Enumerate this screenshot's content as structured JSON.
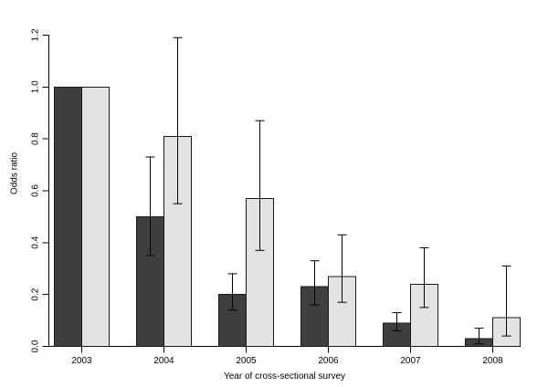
{
  "figure": {
    "background": "#ffffff",
    "axis_color": "#000000",
    "text_color": "#000000"
  },
  "chart_data": {
    "type": "bar",
    "xlabel": "Year of cross-sectional survey",
    "ylabel": "Odds ratio",
    "categories": [
      "2003",
      "2004",
      "2005",
      "2006",
      "2007",
      "2008"
    ],
    "ylim": [
      0.0,
      1.2
    ],
    "y_ticks": [
      0.0,
      0.2,
      0.4,
      0.6,
      0.8,
      1.0,
      1.2
    ],
    "y_tick_labels": [
      "0.0",
      "0.2",
      "0.4",
      "0.6",
      "0.8",
      "1.0",
      "1.2"
    ],
    "grid": false,
    "legend_position": "none",
    "series": [
      {
        "name": "dark-gray-bars",
        "color": "#3f3f3f",
        "border": "#1a1a1a",
        "values": [
          1.0,
          0.5,
          0.2,
          0.23,
          0.09,
          0.03
        ],
        "ci_low": [
          null,
          0.35,
          0.14,
          0.16,
          0.06,
          0.01
        ],
        "ci_high": [
          null,
          0.73,
          0.28,
          0.33,
          0.13,
          0.07
        ]
      },
      {
        "name": "light-gray-bars",
        "color": "#e3e3e3",
        "border": "#1a1a1a",
        "values": [
          1.0,
          0.81,
          0.57,
          0.27,
          0.24,
          0.11
        ],
        "ci_low": [
          null,
          0.55,
          0.37,
          0.17,
          0.15,
          0.04
        ],
        "ci_high": [
          null,
          1.19,
          0.87,
          0.43,
          0.38,
          0.31
        ]
      }
    ],
    "error_bar_color": "#000000"
  }
}
